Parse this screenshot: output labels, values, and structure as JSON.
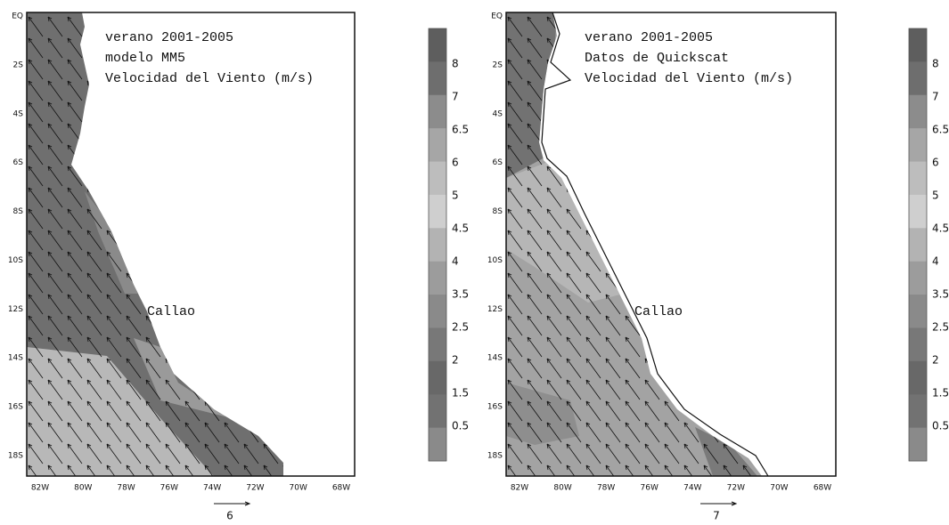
{
  "panels": [
    {
      "title_lines": [
        "verano 2001-2005",
        "modelo MM5",
        "Velocidad del Viento (m/s)"
      ],
      "place_label": "Callao",
      "y_labels": [
        "EQ",
        "2S",
        "4S",
        "6S",
        "8S",
        "10S",
        "12S",
        "14S",
        "16S",
        "18S"
      ],
      "x_labels": [
        "82W",
        "80W",
        "78W",
        "76W",
        "74W",
        "72W",
        "70W",
        "68W"
      ],
      "reference_vector": "6",
      "colorbar_labels": [
        8,
        7,
        6.5,
        6,
        5,
        4.5,
        4,
        3.5,
        2.5,
        2,
        1.5,
        0.5
      ]
    },
    {
      "title_lines": [
        "verano 2001-2005",
        "Datos de Quickscat",
        "Velocidad del Viento (m/s)"
      ],
      "place_label": "Callao",
      "y_labels": [
        "EQ",
        "2S",
        "4S",
        "6S",
        "8S",
        "10S",
        "12S",
        "14S",
        "16S",
        "18S"
      ],
      "x_labels": [
        "82W",
        "80W",
        "78W",
        "76W",
        "74W",
        "72W",
        "70W",
        "68W"
      ],
      "reference_vector": "7",
      "colorbar_labels": [
        8,
        7,
        6.5,
        6,
        5,
        4.5,
        4,
        3.5,
        2.5,
        2,
        1.5,
        0.5
      ]
    }
  ]
}
